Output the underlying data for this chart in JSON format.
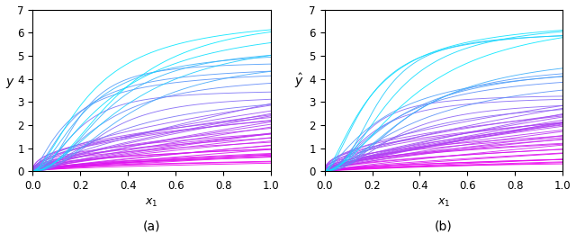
{
  "n_curves": 50,
  "x_min": 0.0,
  "x_max": 1.0,
  "y_min": 0.0,
  "y_max": 7.0,
  "n_points": 300,
  "xlabel": "$x_1$",
  "ylabel_a": "$y$",
  "ylabel_b": "$\\hat{y}$",
  "label_a": "(a)",
  "label_b": "(b)",
  "color_low": "#ee00ee",
  "color_high": "#00eeff",
  "linewidth": 0.65,
  "alpha": 0.9,
  "seed_a": 42,
  "seed_b": 99,
  "figsize": [
    6.4,
    2.8
  ],
  "dpi": 100,
  "yticks": [
    0,
    1,
    2,
    3,
    4,
    5,
    6,
    7
  ],
  "xticks": [
    0.0,
    0.2,
    0.4,
    0.6,
    0.8,
    1.0
  ],
  "amp_min": 0.3,
  "amp_max": 7.0,
  "exp_min": 0.35,
  "exp_max": 0.75,
  "n_curves_cyan": 20,
  "n_curves_magenta": 30
}
